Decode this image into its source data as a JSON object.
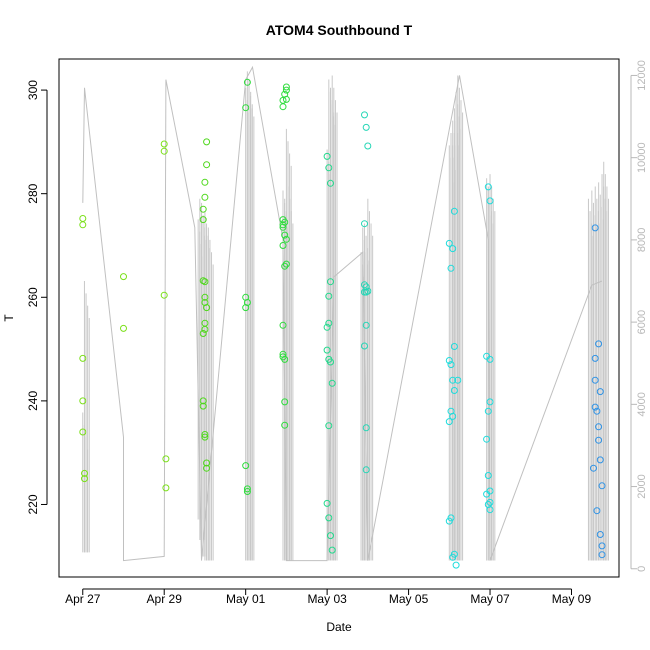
{
  "chart_data": {
    "type": "scatter",
    "title": "ATOM4 Southbound T",
    "xlabel": "Date",
    "ylabel": "T",
    "x_ticks": [
      {
        "date": "2023-04-27",
        "label": "Apr 27"
      },
      {
        "date": "2023-04-29",
        "label": "Apr 29"
      },
      {
        "date": "2023-05-01",
        "label": "May 01"
      },
      {
        "date": "2023-05-03",
        "label": "May 03"
      },
      {
        "date": "2023-05-05",
        "label": "May 05"
      },
      {
        "date": "2023-05-07",
        "label": "May 07"
      },
      {
        "date": "2023-05-09",
        "label": "May 09"
      }
    ],
    "xlim": [
      "2023-04-26T10:00",
      "2023-05-10T04:00"
    ],
    "ylim": [
      206,
      306
    ],
    "y_ticks": [
      220,
      240,
      260,
      280,
      300
    ],
    "y2lim": [
      -200,
      12400
    ],
    "y2_ticks": [
      0,
      2000,
      4000,
      6000,
      8000,
      10000,
      12000
    ],
    "grid": false,
    "series": [
      {
        "color": "#c0c0c0",
        "points": [
          [
            "2023-04-27T00:00",
            8900
          ],
          [
            "2023-04-27T01:00",
            11700
          ],
          [
            "2023-04-28T00:00",
            3200
          ],
          [
            "2023-04-28T00:00",
            200
          ],
          [
            "2023-04-29T00:00",
            300
          ],
          [
            "2023-04-29T01:00",
            11900
          ],
          [
            "2023-04-29T18:00",
            8300
          ],
          [
            "2023-04-29T22:00",
            200
          ],
          [
            "2023-05-01T00:00",
            11900
          ],
          [
            "2023-05-01T04:00",
            12200
          ],
          [
            "2023-05-01T22:00",
            8000
          ],
          [
            "2023-05-02T00:00",
            200
          ],
          [
            "2023-05-03T00:00",
            200
          ],
          [
            "2023-05-03T04:00",
            7100
          ],
          [
            "2023-05-03T21:00",
            7700
          ],
          [
            "2023-05-04T00:00",
            200
          ],
          [
            "2023-05-06T06:00",
            12000
          ],
          [
            "2023-05-06T23:00",
            8000
          ],
          [
            "2023-05-07T00:00",
            200
          ],
          [
            "2023-05-09T12:00",
            6900
          ],
          [
            "2023-05-09T18:00",
            7000
          ]
        ]
      },
      {
        "color": "#7be01a",
        "points": [
          [
            "2023-04-27T00:00",
            275.2
          ],
          [
            "2023-04-27T00:00",
            274.0
          ],
          [
            "2023-04-27T00:00",
            248.2
          ],
          [
            "2023-04-27T00:00",
            240.0
          ],
          [
            "2023-04-27T00:00",
            234.0
          ],
          [
            "2023-04-27T01:00",
            226.0
          ],
          [
            "2023-04-27T01:00",
            225.0
          ],
          [
            "2023-04-28T00:00",
            264.0
          ],
          [
            "2023-04-28T00:00",
            254.0
          ],
          [
            "2023-04-29T00:00",
            289.6
          ],
          [
            "2023-04-29T00:00",
            288.2
          ],
          [
            "2023-04-29T00:00",
            260.4
          ],
          [
            "2023-04-29T01:00",
            228.8
          ],
          [
            "2023-04-29T01:00",
            223.2
          ]
        ]
      },
      {
        "color": "#4fd81c",
        "points": [
          [
            "2023-04-29T23:00",
            277.0
          ],
          [
            "2023-04-29T23:00",
            275.0
          ],
          [
            "2023-04-29T23:00",
            263.2
          ],
          [
            "2023-04-29T23:00",
            253.0
          ],
          [
            "2023-04-29T23:00",
            240.0
          ],
          [
            "2023-04-29T23:00",
            239.0
          ],
          [
            "2023-04-30T00:00",
            282.2
          ],
          [
            "2023-04-30T00:00",
            279.3
          ],
          [
            "2023-04-30T00:00",
            263.0
          ],
          [
            "2023-04-30T00:00",
            260.0
          ],
          [
            "2023-04-30T00:00",
            259.0
          ],
          [
            "2023-04-30T00:00",
            255.0
          ],
          [
            "2023-04-30T00:00",
            253.8
          ],
          [
            "2023-04-30T00:00",
            233.5
          ],
          [
            "2023-04-30T00:00",
            233.0
          ],
          [
            "2023-04-30T01:00",
            290.0
          ],
          [
            "2023-04-30T01:00",
            285.6
          ],
          [
            "2023-04-30T01:00",
            258.0
          ],
          [
            "2023-04-30T01:00",
            228.0
          ],
          [
            "2023-04-30T01:00",
            227.0
          ]
        ]
      },
      {
        "color": "#2edc3c",
        "points": [
          [
            "2023-05-01T00:00",
            296.6
          ],
          [
            "2023-05-01T00:00",
            260.0
          ],
          [
            "2023-05-01T00:00",
            258.0
          ],
          [
            "2023-05-01T00:00",
            227.5
          ],
          [
            "2023-05-01T01:00",
            301.5
          ],
          [
            "2023-05-01T01:00",
            259.0
          ],
          [
            "2023-05-01T01:00",
            223.0
          ],
          [
            "2023-05-01T01:00",
            222.5
          ],
          [
            "2023-05-01T22:00",
            296.8
          ],
          [
            "2023-05-01T22:00",
            298.0
          ],
          [
            "2023-05-01T22:00",
            275.0
          ],
          [
            "2023-05-01T22:00",
            274.0
          ],
          [
            "2023-05-01T22:00",
            273.5
          ],
          [
            "2023-05-01T22:00",
            270.0
          ],
          [
            "2023-05-01T22:00",
            254.6
          ],
          [
            "2023-05-01T22:00",
            249.0
          ],
          [
            "2023-05-01T22:00",
            248.5
          ],
          [
            "2023-05-01T23:00",
            299.2
          ],
          [
            "2023-05-01T23:00",
            274.5
          ],
          [
            "2023-05-01T23:00",
            272.0
          ],
          [
            "2023-05-01T23:00",
            266.0
          ],
          [
            "2023-05-01T23:00",
            248.0
          ],
          [
            "2023-05-01T23:00",
            239.8
          ],
          [
            "2023-05-01T23:00",
            235.3
          ],
          [
            "2023-05-02T00:00",
            300.6
          ],
          [
            "2023-05-02T00:00",
            300.0
          ],
          [
            "2023-05-02T00:00",
            298.2
          ],
          [
            "2023-05-02T00:00",
            271.2
          ],
          [
            "2023-05-02T00:00",
            266.4
          ]
        ]
      },
      {
        "color": "#21d98c",
        "points": [
          [
            "2023-05-03T00:00",
            287.2
          ],
          [
            "2023-05-03T00:00",
            254.2
          ],
          [
            "2023-05-03T00:00",
            249.8
          ],
          [
            "2023-05-03T00:00",
            220.2
          ],
          [
            "2023-05-03T01:00",
            285.0
          ],
          [
            "2023-05-03T01:00",
            260.2
          ],
          [
            "2023-05-03T01:00",
            255.0
          ],
          [
            "2023-05-03T01:00",
            248.0
          ],
          [
            "2023-05-03T01:00",
            235.2
          ],
          [
            "2023-05-03T01:00",
            217.4
          ],
          [
            "2023-05-03T02:00",
            282.0
          ],
          [
            "2023-05-03T02:00",
            263.0
          ],
          [
            "2023-05-03T02:00",
            247.5
          ],
          [
            "2023-05-03T02:00",
            214.0
          ],
          [
            "2023-05-03T03:00",
            243.4
          ],
          [
            "2023-05-03T03:00",
            211.2
          ]
        ]
      },
      {
        "color": "#25d6b6",
        "points": [
          [
            "2023-05-03T22:00",
            295.2
          ],
          [
            "2023-05-03T22:00",
            274.2
          ],
          [
            "2023-05-03T22:00",
            262.4
          ],
          [
            "2023-05-03T22:00",
            261.0
          ],
          [
            "2023-05-03T22:00",
            250.6
          ],
          [
            "2023-05-03T23:00",
            292.8
          ],
          [
            "2023-05-03T23:00",
            262.0
          ],
          [
            "2023-05-03T23:00",
            261.0
          ],
          [
            "2023-05-03T23:00",
            254.6
          ],
          [
            "2023-05-03T23:00",
            234.8
          ],
          [
            "2023-05-03T23:00",
            226.7
          ],
          [
            "2023-05-04T00:00",
            289.2
          ],
          [
            "2023-05-04T00:00",
            261.2
          ]
        ]
      },
      {
        "color": "#1edcdc",
        "points": [
          [
            "2023-05-06T00:00",
            270.4
          ],
          [
            "2023-05-06T00:00",
            247.8
          ],
          [
            "2023-05-06T00:00",
            236.0
          ],
          [
            "2023-05-06T00:00",
            216.8
          ],
          [
            "2023-05-06T01:00",
            265.6
          ],
          [
            "2023-05-06T01:00",
            247.0
          ],
          [
            "2023-05-06T01:00",
            238.0
          ],
          [
            "2023-05-06T01:00",
            217.4
          ],
          [
            "2023-05-06T02:00",
            269.4
          ],
          [
            "2023-05-06T02:00",
            244.0
          ],
          [
            "2023-05-06T02:00",
            237.0
          ],
          [
            "2023-05-06T02:00",
            209.8
          ],
          [
            "2023-05-06T03:00",
            276.6
          ],
          [
            "2023-05-06T03:00",
            250.5
          ],
          [
            "2023-05-06T03:00",
            242.0
          ],
          [
            "2023-05-06T03:00",
            210.4
          ],
          [
            "2023-05-06T04:00",
            208.3
          ],
          [
            "2023-05-06T05:00",
            244.0
          ],
          [
            "2023-05-06T22:00",
            248.6
          ],
          [
            "2023-05-06T22:00",
            232.6
          ],
          [
            "2023-05-06T22:00",
            222.0
          ],
          [
            "2023-05-06T23:00",
            281.3
          ],
          [
            "2023-05-06T23:00",
            238.0
          ],
          [
            "2023-05-06T23:00",
            225.6
          ],
          [
            "2023-05-06T23:00",
            220.0
          ],
          [
            "2023-05-07T00:00",
            278.6
          ],
          [
            "2023-05-07T00:00",
            248.0
          ],
          [
            "2023-05-07T00:00",
            239.8
          ],
          [
            "2023-05-07T00:00",
            222.6
          ],
          [
            "2023-05-07T00:00",
            220.4
          ],
          [
            "2023-05-07T00:00",
            219.0
          ]
        ]
      },
      {
        "color": "#2f93e6",
        "points": [
          [
            "2023-05-09T13:00",
            227.0
          ],
          [
            "2023-05-09T14:00",
            273.4
          ],
          [
            "2023-05-09T14:00",
            248.2
          ],
          [
            "2023-05-09T14:00",
            244.0
          ],
          [
            "2023-05-09T14:00",
            238.8
          ],
          [
            "2023-05-09T15:00",
            238.0
          ],
          [
            "2023-05-09T15:00",
            218.8
          ],
          [
            "2023-05-09T16:00",
            251.0
          ],
          [
            "2023-05-09T16:00",
            235.0
          ],
          [
            "2023-05-09T16:00",
            232.4
          ],
          [
            "2023-05-09T17:00",
            241.8
          ],
          [
            "2023-05-09T17:00",
            228.6
          ],
          [
            "2023-05-09T17:00",
            214.2
          ],
          [
            "2023-05-09T18:00",
            223.6
          ],
          [
            "2023-05-09T18:00",
            212.0
          ],
          [
            "2023-05-09T18:00",
            210.3
          ]
        ]
      }
    ],
    "right_axis_bursts": [
      [
        "2023-04-27T00:00",
        400,
        3800
      ],
      [
        "2023-04-27T01:00",
        400,
        7000
      ],
      [
        "2023-04-29T20:00",
        1200,
        8500
      ],
      [
        "2023-04-29T21:00",
        700,
        9000
      ],
      [
        "2023-04-29T22:00",
        300,
        8900
      ],
      [
        "2023-04-30T00:00",
        200,
        8700
      ],
      [
        "2023-04-30T02:00",
        200,
        8300
      ],
      [
        "2023-05-01T00:00",
        200,
        11700
      ],
      [
        "2023-05-01T01:00",
        200,
        12100
      ],
      [
        "2023-05-01T02:00",
        200,
        11900
      ],
      [
        "2023-05-01T22:00",
        200,
        9200
      ],
      [
        "2023-05-01T23:00",
        200,
        9000
      ],
      [
        "2023-05-02T00:00",
        200,
        10700
      ],
      [
        "2023-05-02T01:00",
        200,
        9300
      ],
      [
        "2023-05-03T00:00",
        200,
        10200
      ],
      [
        "2023-05-03T01:00",
        200,
        11900
      ],
      [
        "2023-05-03T02:00",
        200,
        11700
      ],
      [
        "2023-05-03T03:00",
        200,
        12000
      ],
      [
        "2023-05-03T20:00",
        200,
        7700
      ],
      [
        "2023-05-03T21:00",
        200,
        8300
      ],
      [
        "2023-05-03T22:00",
        200,
        8400
      ],
      [
        "2023-05-04T00:00",
        200,
        9000
      ],
      [
        "2023-05-06T00:00",
        200,
        10300
      ],
      [
        "2023-05-06T01:00",
        200,
        10600
      ],
      [
        "2023-05-06T02:00",
        200,
        10900
      ],
      [
        "2023-05-06T03:00",
        200,
        11200
      ],
      [
        "2023-05-06T04:00",
        200,
        11600
      ],
      [
        "2023-05-06T05:00",
        200,
        12000
      ],
      [
        "2023-05-06T22:00",
        200,
        9500
      ],
      [
        "2023-05-06T23:00",
        200,
        9300
      ],
      [
        "2023-05-07T00:00",
        200,
        9600
      ],
      [
        "2023-05-09T10:00",
        200,
        9000
      ],
      [
        "2023-05-09T12:00",
        200,
        9200
      ],
      [
        "2023-05-09T14:00",
        200,
        9300
      ],
      [
        "2023-05-09T16:00",
        200,
        9400
      ],
      [
        "2023-05-09T18:00",
        200,
        9600
      ],
      [
        "2023-05-09T19:00",
        200,
        9900
      ]
    ]
  }
}
